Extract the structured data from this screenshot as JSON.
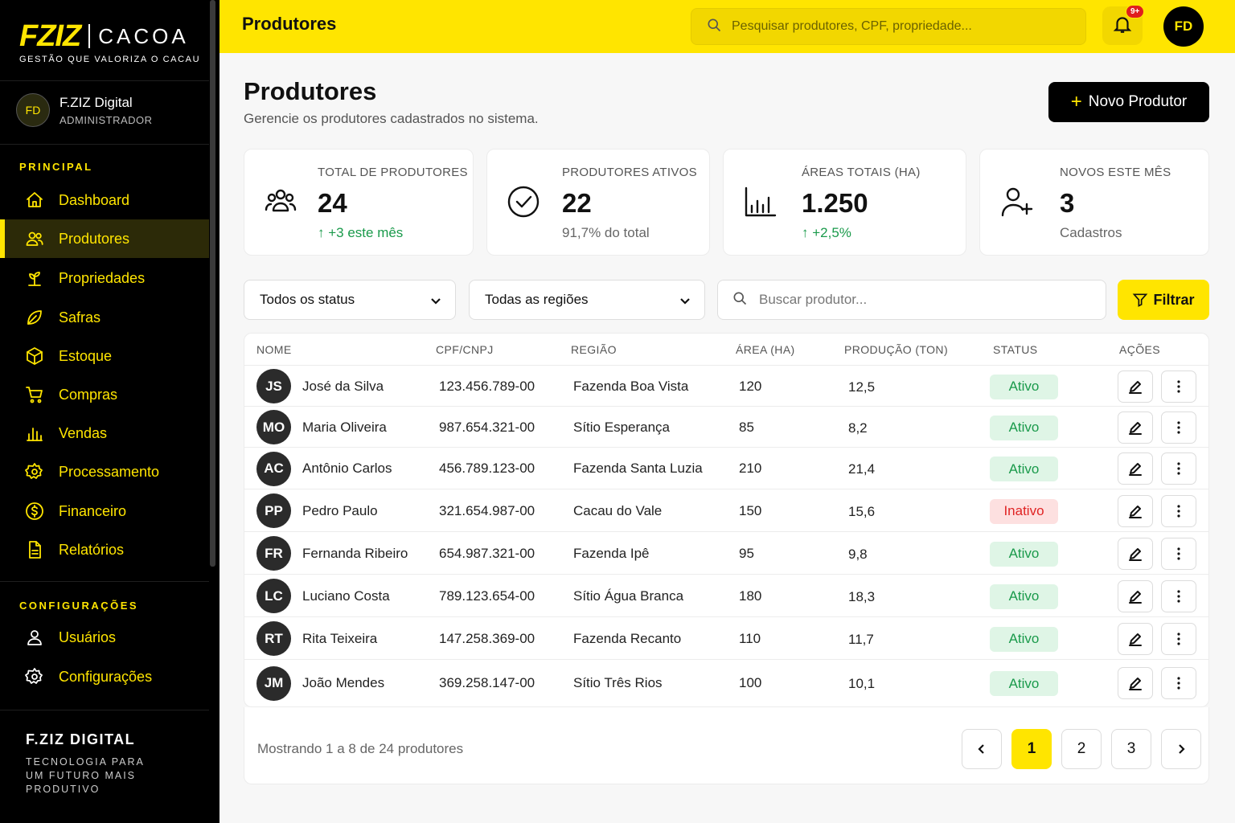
{
  "brand": {
    "logo": "FZIZ",
    "name": "CACOA",
    "tagline": "GESTÃO QUE VALORIZA O CACAU",
    "accent": "#FFE500"
  },
  "user": {
    "initials": "FD",
    "name": "F.ZIZ Digital",
    "role": "ADMINISTRADOR"
  },
  "sidebar": {
    "principal_label": "PRINCIPAL",
    "items": [
      {
        "label": "Dashboard",
        "icon": "home-icon"
      },
      {
        "label": "Produtores",
        "icon": "users-icon",
        "active": true
      },
      {
        "label": "Propriedades",
        "icon": "plant-icon"
      },
      {
        "label": "Safras",
        "icon": "leaf-icon"
      },
      {
        "label": "Estoque",
        "icon": "box-icon"
      },
      {
        "label": "Compras",
        "icon": "cart-icon"
      },
      {
        "label": "Vendas",
        "icon": "bar-chart-icon"
      },
      {
        "label": "Processamento",
        "icon": "gear-icon"
      },
      {
        "label": "Financeiro",
        "icon": "dollar-icon"
      },
      {
        "label": "Relatórios",
        "icon": "document-icon"
      }
    ],
    "config_label": "CONFIGURAÇÕES",
    "config_items": [
      {
        "label": "Usuários",
        "icon": "user-icon"
      },
      {
        "label": "Configurações",
        "icon": "gear-icon"
      }
    ],
    "footer_title": "F.ZIZ DIGITAL",
    "footer_text": "TECNOLOGIA PARA UM FUTURO MAIS PRODUTIVO"
  },
  "topbar": {
    "title": "Produtores",
    "search_placeholder": "Pesquisar produtores, CPF, propriedade...",
    "notif_badge": "9+",
    "avatar": "FD"
  },
  "header": {
    "title": "Produtores",
    "subtitle": "Gerencie os produtores cadastrados no sistema.",
    "new_button": "Novo Produtor"
  },
  "stats": [
    {
      "label": "TOTAL DE PRODUTORES",
      "value": "24",
      "sub": "+3 este mês",
      "trend": "up",
      "icon": "users-icon"
    },
    {
      "label": "PRODUTORES ATIVOS",
      "value": "22",
      "sub": "91,7% do total",
      "icon": "check-circle-icon"
    },
    {
      "label": "ÁREAS TOTAIS (HA)",
      "value": "1.250",
      "sub": "+2,5%",
      "trend": "up",
      "icon": "bar-chart-icon"
    },
    {
      "label": "NOVOS ESTE MÊS",
      "value": "3",
      "sub": "Cadastros",
      "icon": "user-plus-icon"
    }
  ],
  "filters": {
    "status": "Todos os status",
    "region": "Todas as regiões",
    "search_placeholder": "Buscar produtor...",
    "filter_button": "Filtrar"
  },
  "table": {
    "columns": [
      "NOME",
      "CPF/CNPJ",
      "REGIÃO",
      "ÁREA (HA)",
      "PRODUÇÃO (TON)",
      "STATUS",
      "AÇÕES"
    ],
    "rows": [
      {
        "initials": "JS",
        "name": "José da Silva",
        "doc": "123.456.789-00",
        "region": "Fazenda Boa Vista",
        "area": "120",
        "prod": "12,5",
        "status": "Ativo"
      },
      {
        "initials": "MO",
        "name": "Maria Oliveira",
        "doc": "987.654.321-00",
        "region": "Sítio Esperança",
        "area": "85",
        "prod": "8,2",
        "status": "Ativo"
      },
      {
        "initials": "AC",
        "name": "Antônio Carlos",
        "doc": "456.789.123-00",
        "region": "Fazenda Santa Luzia",
        "area": "210",
        "prod": "21,4",
        "status": "Ativo"
      },
      {
        "initials": "PP",
        "name": "Pedro Paulo",
        "doc": "321.654.987-00",
        "region": "Cacau do Vale",
        "area": "150",
        "prod": "15,6",
        "status": "Inativo"
      },
      {
        "initials": "FR",
        "name": "Fernanda Ribeiro",
        "doc": "654.987.321-00",
        "region": "Fazenda Ipê",
        "area": "95",
        "prod": "9,8",
        "status": "Ativo"
      },
      {
        "initials": "LC",
        "name": "Luciano Costa",
        "doc": "789.123.654-00",
        "region": "Sítio Água Branca",
        "area": "180",
        "prod": "18,3",
        "status": "Ativo"
      },
      {
        "initials": "RT",
        "name": "Rita Teixeira",
        "doc": "147.258.369-00",
        "region": "Fazenda Recanto",
        "area": "110",
        "prod": "11,7",
        "status": "Ativo"
      },
      {
        "initials": "JM",
        "name": "João Mendes",
        "doc": "369.258.147-00",
        "region": "Sítio Três Rios",
        "area": "100",
        "prod": "10,1",
        "status": "Ativo"
      }
    ]
  },
  "pagination": {
    "showing": "Mostrando 1 a 8 de 24 produtores",
    "pages": [
      "1",
      "2",
      "3"
    ],
    "current": "1"
  }
}
